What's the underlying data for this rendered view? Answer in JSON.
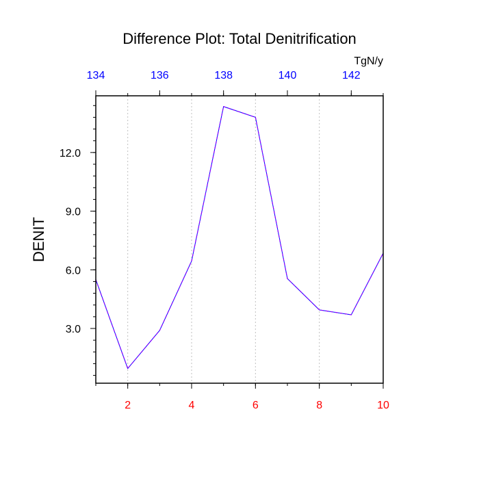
{
  "chart_data": {
    "type": "line",
    "title": "Difference Plot: Total Denitrification",
    "ylabel": "DENIT",
    "units_label": "TgN/y",
    "x": [
      1,
      2,
      3,
      4,
      5,
      6,
      7,
      8,
      9,
      10
    ],
    "series": [
      {
        "name": "DENIT",
        "values": [
          5.5,
          0.95,
          2.9,
          6.45,
          14.35,
          13.8,
          5.55,
          3.95,
          3.7,
          6.85
        ],
        "color": "#8B00FF"
      }
    ],
    "xlim": [
      1,
      10
    ],
    "ylim": [
      0.2,
      14.9
    ],
    "x_ticks": [
      "2",
      "4",
      "6",
      "8",
      "10"
    ],
    "y_ticks": [
      "3.0",
      "6.0",
      "9.0",
      "12.0"
    ],
    "top_axis": {
      "range": [
        134,
        143
      ],
      "ticks": [
        "134",
        "136",
        "138",
        "140",
        "142"
      ]
    },
    "grid": "vertical dotted",
    "colors": {
      "bottom_tick_labels": "#ff0000",
      "top_tick_labels": "#0000ff",
      "line_primary": "#8B00FF",
      "line_secondary": "#0000ff",
      "grid": "#bfbfbf"
    }
  }
}
